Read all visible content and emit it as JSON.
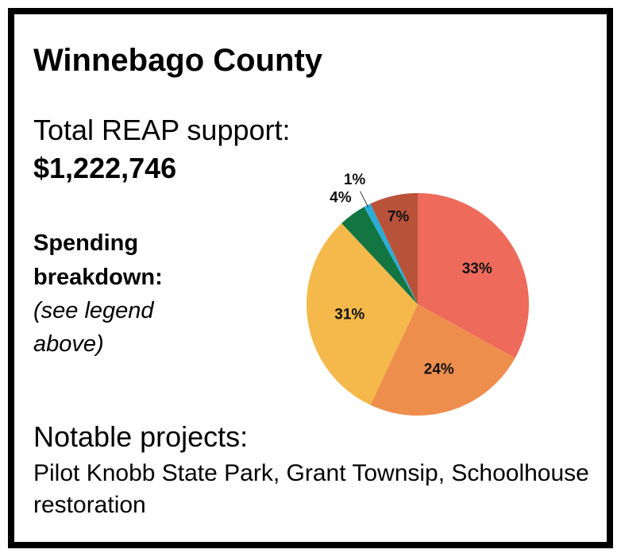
{
  "card": {
    "title": "Winnebago County",
    "support_label": "Total REAP support:",
    "support_amount": "$1,222,746",
    "spending_label": "Spending breakdown:",
    "spending_note": "(see legend above)",
    "projects_label": "Notable projects:",
    "projects": "Pilot Knobb State Park, Grant Townsip, Schoolhouse restoration"
  },
  "chart_data": {
    "type": "pie",
    "values": [
      33,
      24,
      31,
      4,
      1,
      7
    ],
    "value_labels": [
      "33%",
      "24%",
      "31%",
      "4%",
      "1%",
      "7%"
    ],
    "colors": [
      "#ee6a5b",
      "#ee8e4d",
      "#f4b94a",
      "#127542",
      "#2aaed8",
      "#b8533a"
    ]
  }
}
